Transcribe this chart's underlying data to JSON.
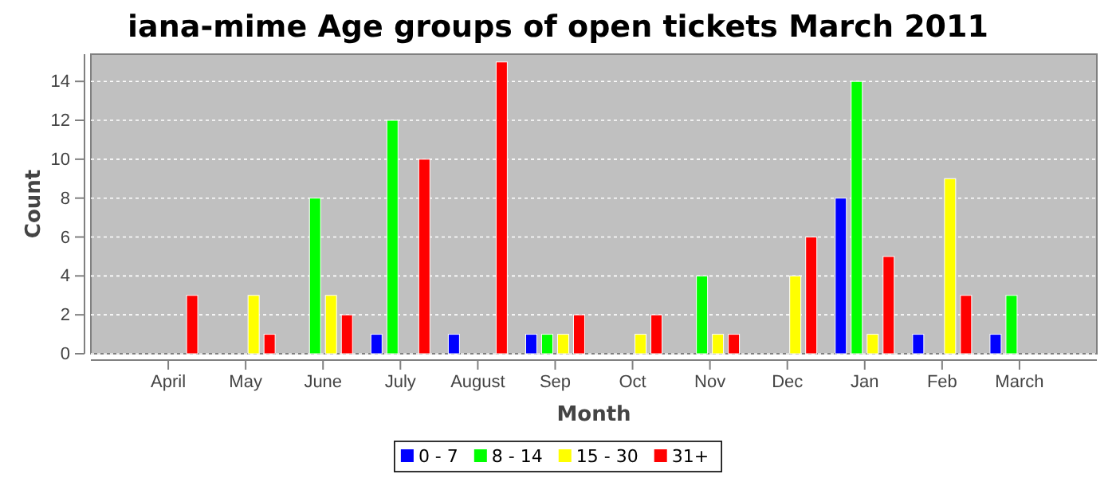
{
  "chart_data": {
    "type": "bar",
    "title": "iana-mime Age groups of open tickets March 2011",
    "xlabel": "Month",
    "ylabel": "Count",
    "categories": [
      "April",
      "May",
      "June",
      "July",
      "August",
      "Sep",
      "Oct",
      "Nov",
      "Dec",
      "Jan",
      "Feb",
      "March"
    ],
    "series": [
      {
        "name": "0 - 7",
        "color": "#0000ff",
        "values": [
          0,
          0,
          0,
          1,
          1,
          1,
          0,
          0,
          0,
          8,
          1,
          1
        ]
      },
      {
        "name": "8 - 14",
        "color": "#00ff00",
        "values": [
          0,
          0,
          8,
          12,
          0,
          1,
          0,
          4,
          0,
          14,
          0,
          3
        ]
      },
      {
        "name": "15 - 30",
        "color": "#ffff00",
        "values": [
          0,
          3,
          3,
          0,
          0,
          1,
          1,
          1,
          4,
          1,
          9,
          0
        ]
      },
      {
        "name": "31+",
        "color": "#ff0000",
        "values": [
          3,
          1,
          2,
          10,
          15,
          2,
          2,
          1,
          6,
          5,
          3,
          0
        ]
      }
    ],
    "ylim": [
      0,
      15.4
    ],
    "yticks": [
      0,
      2,
      4,
      6,
      8,
      10,
      12,
      14
    ],
    "grid": "y",
    "legend": "bottom"
  }
}
